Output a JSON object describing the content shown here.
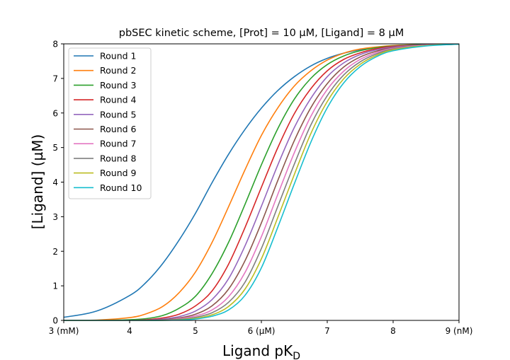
{
  "chart_data": {
    "type": "line",
    "title": "pbSEC kinetic scheme, [Prot] = 10 µM, [Ligand] = 8 µM",
    "xlabel": {
      "main": "Ligand pK",
      "sub": "D"
    },
    "ylabel": "[Ligand] (µM)",
    "xlim": [
      3,
      9
    ],
    "ylim": [
      0,
      8
    ],
    "grid": false,
    "legend_position": "upper-left",
    "xticks": [
      {
        "value": 3,
        "label": "3 (mM)"
      },
      {
        "value": 4,
        "label": "4"
      },
      {
        "value": 5,
        "label": "5"
      },
      {
        "value": 6,
        "label": "6 (µM)"
      },
      {
        "value": 7,
        "label": "7"
      },
      {
        "value": 8,
        "label": "8"
      },
      {
        "value": 9,
        "label": "9 (nM)"
      }
    ],
    "yticks": [
      {
        "value": 0,
        "label": "0"
      },
      {
        "value": 1,
        "label": "1"
      },
      {
        "value": 2,
        "label": "2"
      },
      {
        "value": 3,
        "label": "3"
      },
      {
        "value": 4,
        "label": "4"
      },
      {
        "value": 5,
        "label": "5"
      },
      {
        "value": 6,
        "label": "6"
      },
      {
        "value": 7,
        "label": "7"
      },
      {
        "value": 8,
        "label": "8"
      }
    ],
    "x": [
      3.0,
      3.5,
      4.0,
      4.25,
      4.5,
      4.75,
      5.0,
      5.25,
      5.5,
      5.75,
      6.0,
      6.25,
      6.5,
      6.75,
      7.0,
      7.25,
      7.5,
      7.75,
      8.0,
      8.5,
      9.0
    ],
    "series": [
      {
        "name": "Round 1",
        "color": "#1f77b4",
        "values": [
          0.09,
          0.27,
          0.72,
          1.1,
          1.64,
          2.32,
          3.1,
          3.98,
          4.8,
          5.52,
          6.14,
          6.65,
          7.05,
          7.36,
          7.58,
          7.73,
          7.83,
          7.9,
          7.94,
          7.98,
          7.99
        ]
      },
      {
        "name": "Round 2",
        "color": "#ff7f0e",
        "values": [
          0.0,
          0.01,
          0.08,
          0.19,
          0.4,
          0.8,
          1.4,
          2.25,
          3.28,
          4.35,
          5.35,
          6.15,
          6.78,
          7.22,
          7.53,
          7.73,
          7.85,
          7.91,
          7.95,
          7.98,
          7.99
        ]
      },
      {
        "name": "Round 3",
        "color": "#2ca02c",
        "values": [
          0.0,
          0.0,
          0.02,
          0.05,
          0.14,
          0.35,
          0.7,
          1.35,
          2.25,
          3.35,
          4.5,
          5.55,
          6.4,
          7.0,
          7.4,
          7.65,
          7.8,
          7.89,
          7.94,
          7.98,
          7.99
        ]
      },
      {
        "name": "Round 4",
        "color": "#d62728",
        "values": [
          0.0,
          0.0,
          0.0,
          0.02,
          0.07,
          0.18,
          0.42,
          0.85,
          1.62,
          2.68,
          3.85,
          5.0,
          5.98,
          6.7,
          7.22,
          7.55,
          7.74,
          7.86,
          7.93,
          7.97,
          7.99
        ]
      },
      {
        "name": "Round 5",
        "color": "#9467bd",
        "values": [
          0.0,
          0.0,
          0.0,
          0.01,
          0.04,
          0.11,
          0.27,
          0.6,
          1.2,
          2.15,
          3.3,
          4.5,
          5.58,
          6.42,
          7.05,
          7.45,
          7.69,
          7.83,
          7.91,
          7.97,
          7.99
        ]
      },
      {
        "name": "Round 6",
        "color": "#8c564b",
        "values": [
          0.0,
          0.0,
          0.0,
          0.01,
          0.02,
          0.07,
          0.18,
          0.42,
          0.9,
          1.72,
          2.82,
          4.05,
          5.2,
          6.15,
          6.85,
          7.33,
          7.62,
          7.79,
          7.89,
          7.96,
          7.99
        ]
      },
      {
        "name": "Round 7",
        "color": "#e377c2",
        "values": [
          0.0,
          0.0,
          0.0,
          0.0,
          0.01,
          0.05,
          0.13,
          0.3,
          0.68,
          1.38,
          2.42,
          3.65,
          4.85,
          5.9,
          6.68,
          7.21,
          7.55,
          7.75,
          7.87,
          7.96,
          7.99
        ]
      },
      {
        "name": "Round 8",
        "color": "#7f7f7f",
        "values": [
          0.0,
          0.0,
          0.0,
          0.0,
          0.01,
          0.03,
          0.09,
          0.22,
          0.52,
          1.1,
          2.08,
          3.3,
          4.52,
          5.65,
          6.5,
          7.1,
          7.48,
          7.71,
          7.85,
          7.95,
          7.99
        ]
      },
      {
        "name": "Round 9",
        "color": "#bcbd22",
        "values": [
          0.0,
          0.0,
          0.0,
          0.0,
          0.0,
          0.02,
          0.06,
          0.16,
          0.4,
          0.9,
          1.78,
          2.98,
          4.22,
          5.4,
          6.33,
          6.99,
          7.41,
          7.67,
          7.83,
          7.95,
          7.99
        ]
      },
      {
        "name": "Round 10",
        "color": "#17becf",
        "values": [
          0.0,
          0.0,
          0.0,
          0.0,
          0.0,
          0.01,
          0.04,
          0.12,
          0.3,
          0.72,
          1.52,
          2.7,
          3.95,
          5.15,
          6.15,
          6.87,
          7.34,
          7.63,
          7.8,
          7.94,
          7.99
        ]
      }
    ]
  }
}
